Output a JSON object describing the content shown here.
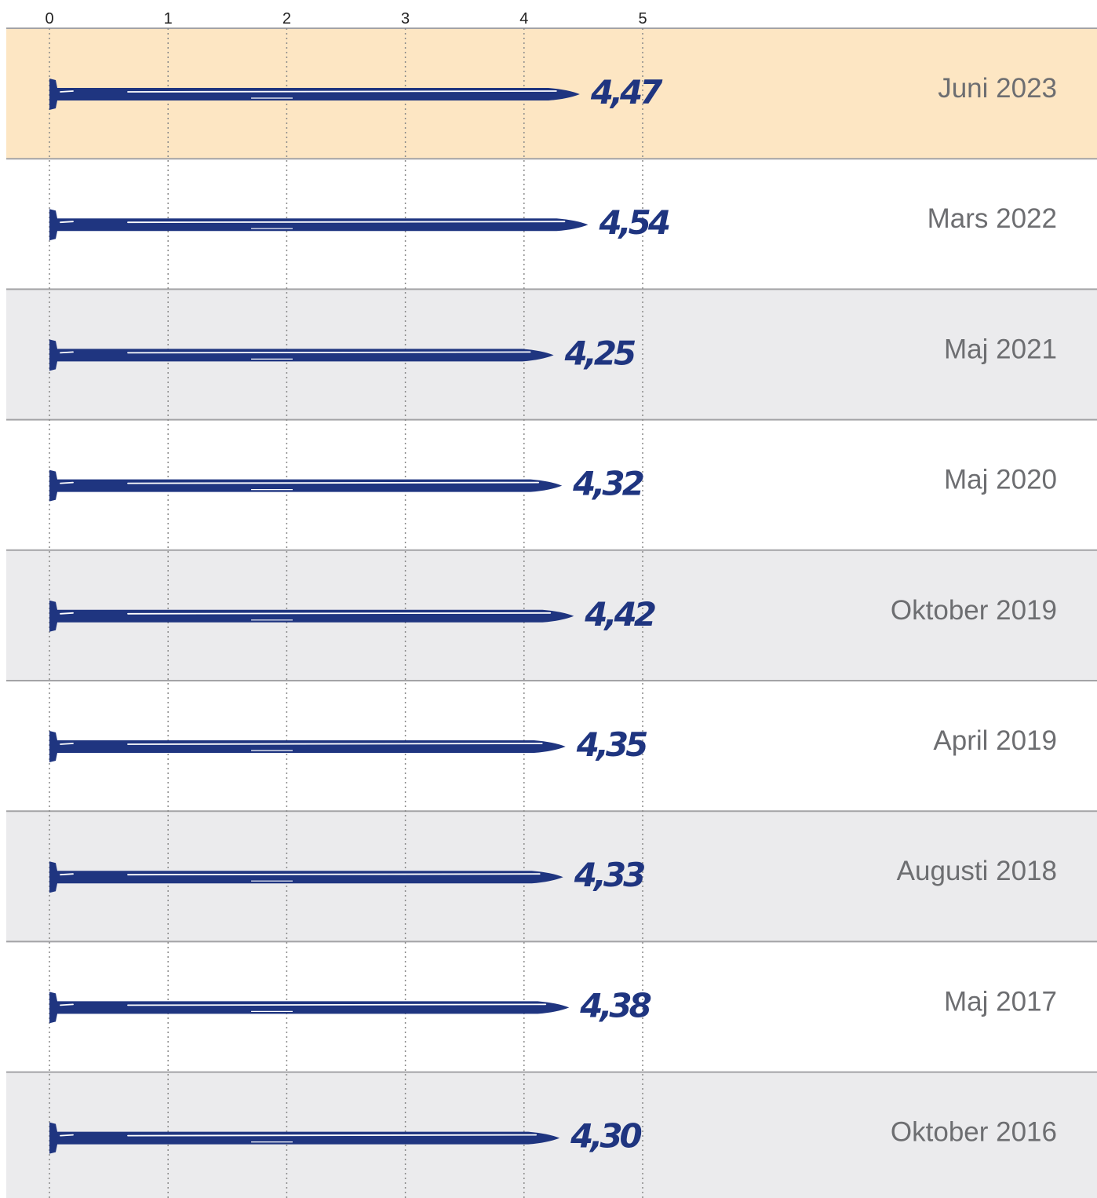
{
  "chart_data": {
    "type": "bar",
    "orientation": "horizontal",
    "categories": [
      "Juni 2023",
      "Mars 2022",
      "Maj 2021",
      "Maj 2020",
      "Oktober 2019",
      "April 2019",
      "Augusti 2018",
      "Maj 2017",
      "Oktober 2016"
    ],
    "values": [
      4.47,
      4.54,
      4.25,
      4.32,
      4.42,
      4.35,
      4.33,
      4.38,
      4.3
    ],
    "value_labels": [
      "4,47",
      "4,54",
      "4,25",
      "4,32",
      "4,42",
      "4,35",
      "4,33",
      "4,38",
      "4,30"
    ],
    "color": "#1f3580",
    "highlight_color": "#fde6c3",
    "band_colors": [
      "#ffffff",
      "#ebebed"
    ],
    "xlim": [
      0,
      5
    ],
    "xticks": [
      0,
      1,
      2,
      3,
      4,
      5
    ],
    "grid": true
  }
}
